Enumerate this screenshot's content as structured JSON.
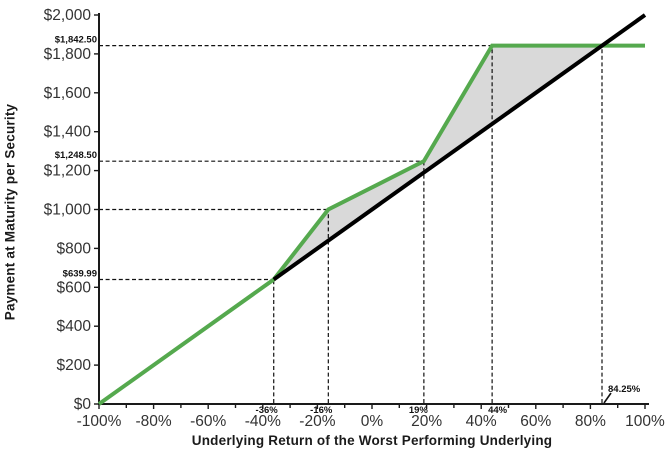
{
  "chart_data": {
    "type": "line",
    "title": "",
    "xlabel": "Underlying Return of the Worst Performing Underlying",
    "ylabel": "Payment at Maturity per Security",
    "xlim": [
      -100,
      100
    ],
    "ylim": [
      0,
      2000
    ],
    "grid": false,
    "legend": false,
    "x_ticks": {
      "minor_step": 10,
      "major": [
        {
          "v": -100,
          "label": "-100%"
        },
        {
          "v": -80,
          "label": "-80%"
        },
        {
          "v": -60,
          "label": "-60%"
        },
        {
          "v": -40,
          "label": "-40%"
        },
        {
          "v": -20,
          "label": "-20%"
        },
        {
          "v": 0,
          "label": "0%"
        },
        {
          "v": 20,
          "label": "20%"
        },
        {
          "v": 40,
          "label": "40%"
        },
        {
          "v": 60,
          "label": "60%"
        },
        {
          "v": 80,
          "label": "80%"
        },
        {
          "v": 100,
          "label": "100%"
        }
      ]
    },
    "y_ticks": {
      "major": [
        {
          "v": 0,
          "label": "$0"
        },
        {
          "v": 200,
          "label": "$200"
        },
        {
          "v": 400,
          "label": "$400"
        },
        {
          "v": 600,
          "label": "$600"
        },
        {
          "v": 800,
          "label": "$800"
        },
        {
          "v": 1000,
          "label": "$1,000"
        },
        {
          "v": 1200,
          "label": "$1,200"
        },
        {
          "v": 1400,
          "label": "$1,400"
        },
        {
          "v": 1600,
          "label": "$1,600"
        },
        {
          "v": 1800,
          "label": "$1,800"
        },
        {
          "v": 2000,
          "label": "$2,000"
        }
      ]
    },
    "series": [
      {
        "name": "payment-at-maturity",
        "color": "#55a94e",
        "width": 4,
        "points": [
          [
            -100,
            0
          ],
          [
            -36,
            639.99
          ],
          [
            -16,
            1000
          ],
          [
            19,
            1248.5
          ],
          [
            44,
            1842.5
          ],
          [
            100,
            1842.5
          ]
        ]
      },
      {
        "name": "worst-underlying-return-line",
        "color": "#000000",
        "width": 4,
        "points": [
          [
            -36,
            639.99
          ],
          [
            100,
            2000
          ]
        ]
      }
    ],
    "shade_region": {
      "color": "#d9d9d9",
      "points": [
        [
          -36,
          639.99
        ],
        [
          -16,
          1000
        ],
        [
          19,
          1248.5
        ],
        [
          44,
          1842.5
        ],
        [
          84.25,
          1842.5
        ]
      ]
    },
    "callouts": [
      {
        "x": -36,
        "y": 639.99,
        "x_label": "-36%",
        "y_label": "$639.99",
        "h_line": true,
        "v_line": true,
        "x_label_pos": "below-left"
      },
      {
        "x": -16,
        "y": 1000,
        "x_label": "-16%",
        "y_label": "",
        "h_line": true,
        "v_line": true,
        "x_label_pos": "below-left"
      },
      {
        "x": 19,
        "y": 1248.5,
        "x_label": "19%",
        "y_label": "$1,248.50",
        "h_line": true,
        "v_line": true,
        "x_label_pos": "below-left"
      },
      {
        "x": 44,
        "y": 1842.5,
        "x_label": "44%",
        "y_label": "$1,842.50",
        "h_line": true,
        "v_line": true,
        "x_label_pos": "below-right"
      },
      {
        "x": 84.25,
        "y": 1842.5,
        "x_label": "84.25%",
        "y_label": "",
        "h_line": false,
        "v_line": true,
        "x_label_pos": "above-right"
      }
    ],
    "colors": {
      "axis": "#1a1a1a",
      "dashed": "#111111",
      "tick_label": "#333333",
      "callout_label": "#111111"
    }
  }
}
